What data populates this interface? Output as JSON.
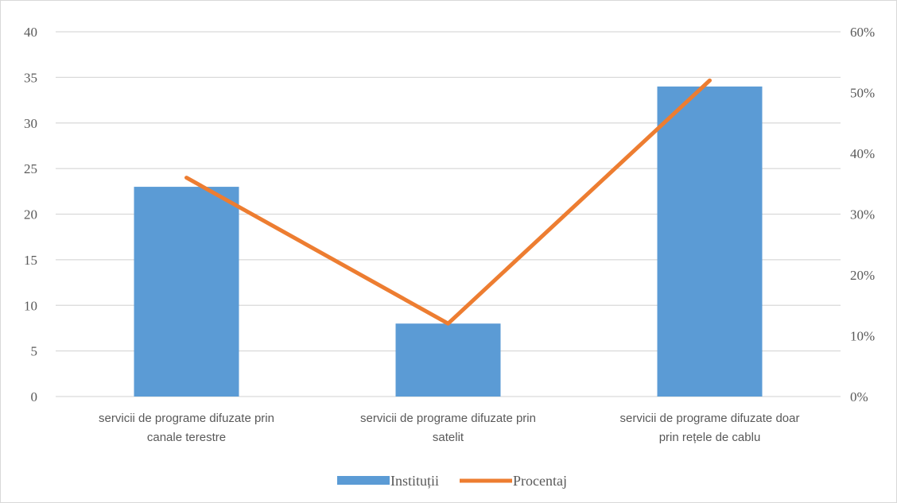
{
  "chart_data": {
    "type": "bar",
    "categories": [
      [
        "servicii de programe difuzate prin",
        "canale terestre"
      ],
      [
        "servicii de programe difuzate prin",
        "satelit"
      ],
      [
        "servicii de programe difuzate doar",
        "prin rețele de cablu"
      ]
    ],
    "series": [
      {
        "name": "Instituții",
        "type": "bar",
        "axis": "left",
        "color": "#5b9bd5",
        "values": [
          23,
          8,
          34
        ]
      },
      {
        "name": "Procentaj",
        "type": "line",
        "axis": "right",
        "color": "#ed7d31",
        "values": [
          0.36,
          0.12,
          0.52
        ]
      }
    ],
    "y_left": {
      "min": 0,
      "max": 40,
      "ticks": [
        "0",
        "5",
        "10",
        "15",
        "20",
        "25",
        "30",
        "35",
        "40"
      ]
    },
    "y_right": {
      "min": 0,
      "max": 0.6,
      "ticks": [
        "0%",
        "10%",
        "20%",
        "30%",
        "40%",
        "50%",
        "60%"
      ]
    },
    "grid": true,
    "legend": "bottom"
  }
}
